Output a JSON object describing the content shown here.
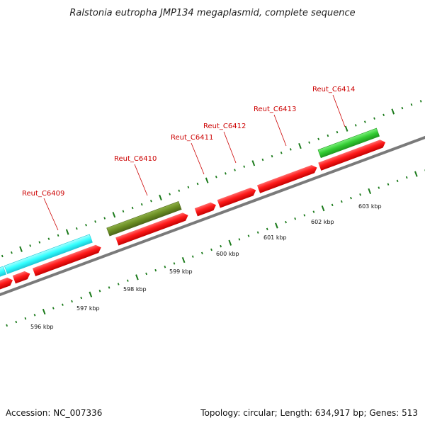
{
  "title": "Ralstonia eutropha JMP134 megaplasmid, complete sequence",
  "footer": {
    "accession": "Accession: NC_007336",
    "summary": "Topology: circular; Length: 634,917 bp; Genes: 513"
  },
  "colors": {
    "cds": "#ff1a1a",
    "cyan_feature": "#33ffff",
    "olive_feature": "#6b8e23",
    "green_feature": "#33cc33",
    "backbone": "#888888",
    "tick": "#1a7a1a",
    "label": "#cc0000"
  },
  "gene_labels": [
    "Reut_C6409",
    "Reut_C6410",
    "Reut_C6411",
    "Reut_C6412",
    "Reut_C6413",
    "Reut_C6414"
  ],
  "scale_labels": [
    "596 kbp",
    "597 kbp",
    "598 kbp",
    "599 kbp",
    "600 kbp",
    "601 kbp",
    "602 kbp",
    "603 kbp"
  ]
}
